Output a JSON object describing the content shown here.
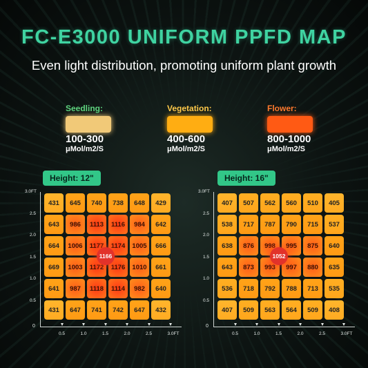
{
  "title": "FC-E3000 UNIFORM PPFD MAP",
  "subtitle": "Even light distribution, promoting uniform plant growth",
  "legend": [
    {
      "label": "Seedling:",
      "range": "100-300",
      "unit": "μMol/m2/S",
      "color": "#f1c978",
      "label_color": "#5fd47f"
    },
    {
      "label": "Vegetation:",
      "range": "400-600",
      "unit": "μMol/m2/S",
      "color": "#ffad12",
      "label_color": "#ffc94a"
    },
    {
      "label": "Flower:",
      "range": "800-1000",
      "unit": "μMol/m2/S",
      "color": "#ff5a14",
      "label_color": "#ff7a2e"
    }
  ],
  "axes": {
    "y_ticks": [
      "3.0FT",
      "2.5",
      "2.0",
      "1.5",
      "1.0",
      "0.5"
    ],
    "x_ticks": [
      "0.5",
      "1.0",
      "1.5",
      "2.0",
      "2.5",
      "3.0FT"
    ],
    "origin": "0"
  },
  "maps": [
    {
      "height_label": "Height: 12\"",
      "center_value": "1166",
      "rows": [
        [
          "431",
          "645",
          "740",
          "738",
          "648",
          "429"
        ],
        [
          "643",
          "986",
          "1113",
          "1116",
          "984",
          "642"
        ],
        [
          "664",
          "1006",
          "1177",
          "1174",
          "1005",
          "666"
        ],
        [
          "669",
          "1003",
          "1172",
          "1176",
          "1010",
          "661"
        ],
        [
          "641",
          "987",
          "1118",
          "1114",
          "982",
          "640"
        ],
        [
          "431",
          "647",
          "741",
          "742",
          "647",
          "432"
        ]
      ]
    },
    {
      "height_label": "Height: 16\"",
      "center_value": "1052",
      "rows": [
        [
          "407",
          "507",
          "562",
          "560",
          "510",
          "405"
        ],
        [
          "538",
          "717",
          "787",
          "790",
          "715",
          "537"
        ],
        [
          "638",
          "876",
          "998",
          "995",
          "875",
          "640"
        ],
        [
          "643",
          "873",
          "993",
          "997",
          "880",
          "635"
        ],
        [
          "536",
          "718",
          "792",
          "788",
          "713",
          "535"
        ],
        [
          "407",
          "509",
          "563",
          "564",
          "509",
          "408"
        ]
      ]
    }
  ]
}
